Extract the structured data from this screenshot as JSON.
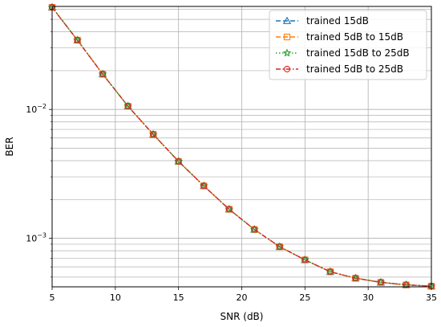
{
  "chart_data": {
    "type": "line",
    "xlabel": "SNR (dB)",
    "ylabel": "BER",
    "xlim": [
      5,
      35
    ],
    "ylim": [
      0.00042,
      0.063
    ],
    "yscale": "log",
    "grid": "on (major and minor)",
    "legend_placement": "top-right",
    "x_ticks": [
      "5",
      "10",
      "15",
      "20",
      "25",
      "30",
      "35"
    ],
    "y_ticks": [
      {
        "base": "10",
        "exp": "−2",
        "value": 0.01
      },
      {
        "base": "10",
        "exp": "−3",
        "value": 0.001
      }
    ],
    "x": [
      5,
      7,
      9,
      11,
      13,
      15,
      17,
      19,
      21,
      23,
      25,
      27,
      29,
      31,
      33,
      35
    ],
    "series": [
      {
        "name": "trained 15dB",
        "marker": "triangle",
        "linestyle": "dashed",
        "color": "#1f77b4",
        "values": [
          0.062,
          0.0345,
          0.0188,
          0.0106,
          0.0064,
          0.00395,
          0.00255,
          0.00168,
          0.00117,
          0.00086,
          0.00068,
          0.00055,
          0.00049,
          0.000455,
          0.000435,
          0.000425
        ]
      },
      {
        "name": "trained 5dB to 15dB",
        "marker": "square",
        "linestyle": "dashed",
        "color": "#ff7f0e",
        "values": [
          0.062,
          0.0345,
          0.0188,
          0.0106,
          0.0064,
          0.00395,
          0.00255,
          0.00168,
          0.00117,
          0.00086,
          0.00068,
          0.00055,
          0.00049,
          0.000455,
          0.000435,
          0.000425
        ]
      },
      {
        "name": "trained 15dB to 25dB",
        "marker": "star",
        "linestyle": "dotted",
        "color": "#2ca02c",
        "values": [
          0.062,
          0.0345,
          0.0188,
          0.0106,
          0.0064,
          0.00395,
          0.00255,
          0.00168,
          0.00117,
          0.00086,
          0.00068,
          0.00055,
          0.00049,
          0.000455,
          0.000435,
          0.000425
        ]
      },
      {
        "name": "trained 5dB to 25dB",
        "marker": "circle",
        "linestyle": "dashdot",
        "color": "#d62728",
        "values": [
          0.062,
          0.0345,
          0.0188,
          0.0106,
          0.0064,
          0.00395,
          0.00255,
          0.00168,
          0.00117,
          0.00086,
          0.00068,
          0.00055,
          0.00049,
          0.000455,
          0.000435,
          0.000425
        ]
      }
    ]
  }
}
